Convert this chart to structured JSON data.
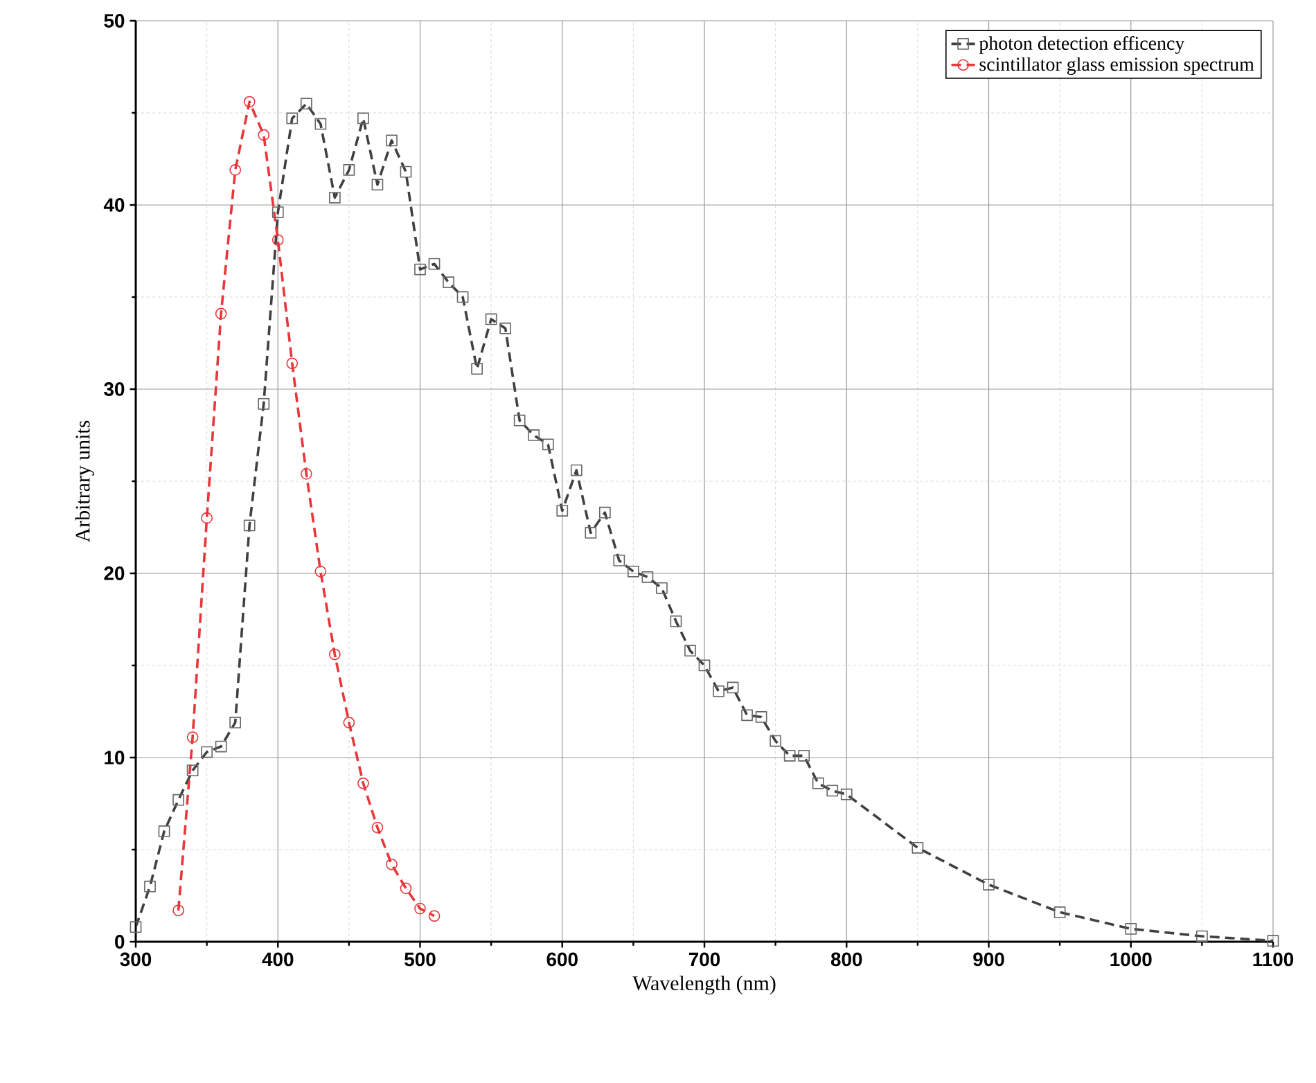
{
  "chart_data": {
    "type": "line",
    "xlabel": "Wavelength (nm)",
    "ylabel": "Arbitrary units",
    "xlim": [
      300,
      1100
    ],
    "xticks": [
      300,
      400,
      500,
      600,
      700,
      800,
      900,
      1000,
      1100
    ],
    "ylim": [
      0,
      50
    ],
    "yticks": [
      0,
      10,
      20,
      30,
      40,
      50
    ],
    "grid": true,
    "legend": "top right",
    "line_style": "dashed",
    "series": [
      {
        "name": "photon detection efficency",
        "color": "#404040",
        "marker": "square",
        "x": [
          300,
          310,
          320,
          330,
          340,
          350,
          360,
          370,
          380,
          390,
          400,
          410,
          420,
          430,
          440,
          450,
          460,
          470,
          480,
          490,
          500,
          510,
          520,
          530,
          540,
          550,
          560,
          570,
          580,
          590,
          600,
          610,
          620,
          630,
          640,
          650,
          660,
          670,
          680,
          690,
          700,
          710,
          720,
          730,
          740,
          750,
          760,
          770,
          780,
          790,
          800,
          850,
          900,
          950,
          1000,
          1050,
          1100
        ],
        "values": [
          0.8,
          3.0,
          6.0,
          7.7,
          9.3,
          10.3,
          10.6,
          11.9,
          22.6,
          29.2,
          39.6,
          44.7,
          45.5,
          44.4,
          40.4,
          41.9,
          44.7,
          41.1,
          43.5,
          41.8,
          36.5,
          36.8,
          35.8,
          35.0,
          31.1,
          33.8,
          33.3,
          28.3,
          27.5,
          27.0,
          23.4,
          25.6,
          22.2,
          23.3,
          20.7,
          20.1,
          19.8,
          19.2,
          17.4,
          15.8,
          15.0,
          13.6,
          13.8,
          12.3,
          12.2,
          10.9,
          10.1,
          10.1,
          8.6,
          8.2,
          8.0,
          5.1,
          3.1,
          1.6,
          0.7,
          0.3,
          0.05
        ]
      },
      {
        "name": "scintillator glass emission spectrum",
        "color": "#e8363b",
        "marker": "circle",
        "x": [
          330,
          340,
          350,
          360,
          370,
          380,
          390,
          400,
          410,
          420,
          430,
          440,
          450,
          460,
          470,
          480,
          490,
          500,
          510
        ],
        "values": [
          1.7,
          11.1,
          23.0,
          34.1,
          41.9,
          45.6,
          43.8,
          38.1,
          31.4,
          25.4,
          20.1,
          15.6,
          11.9,
          8.6,
          6.2,
          4.2,
          2.9,
          1.8,
          1.4
        ]
      }
    ]
  }
}
